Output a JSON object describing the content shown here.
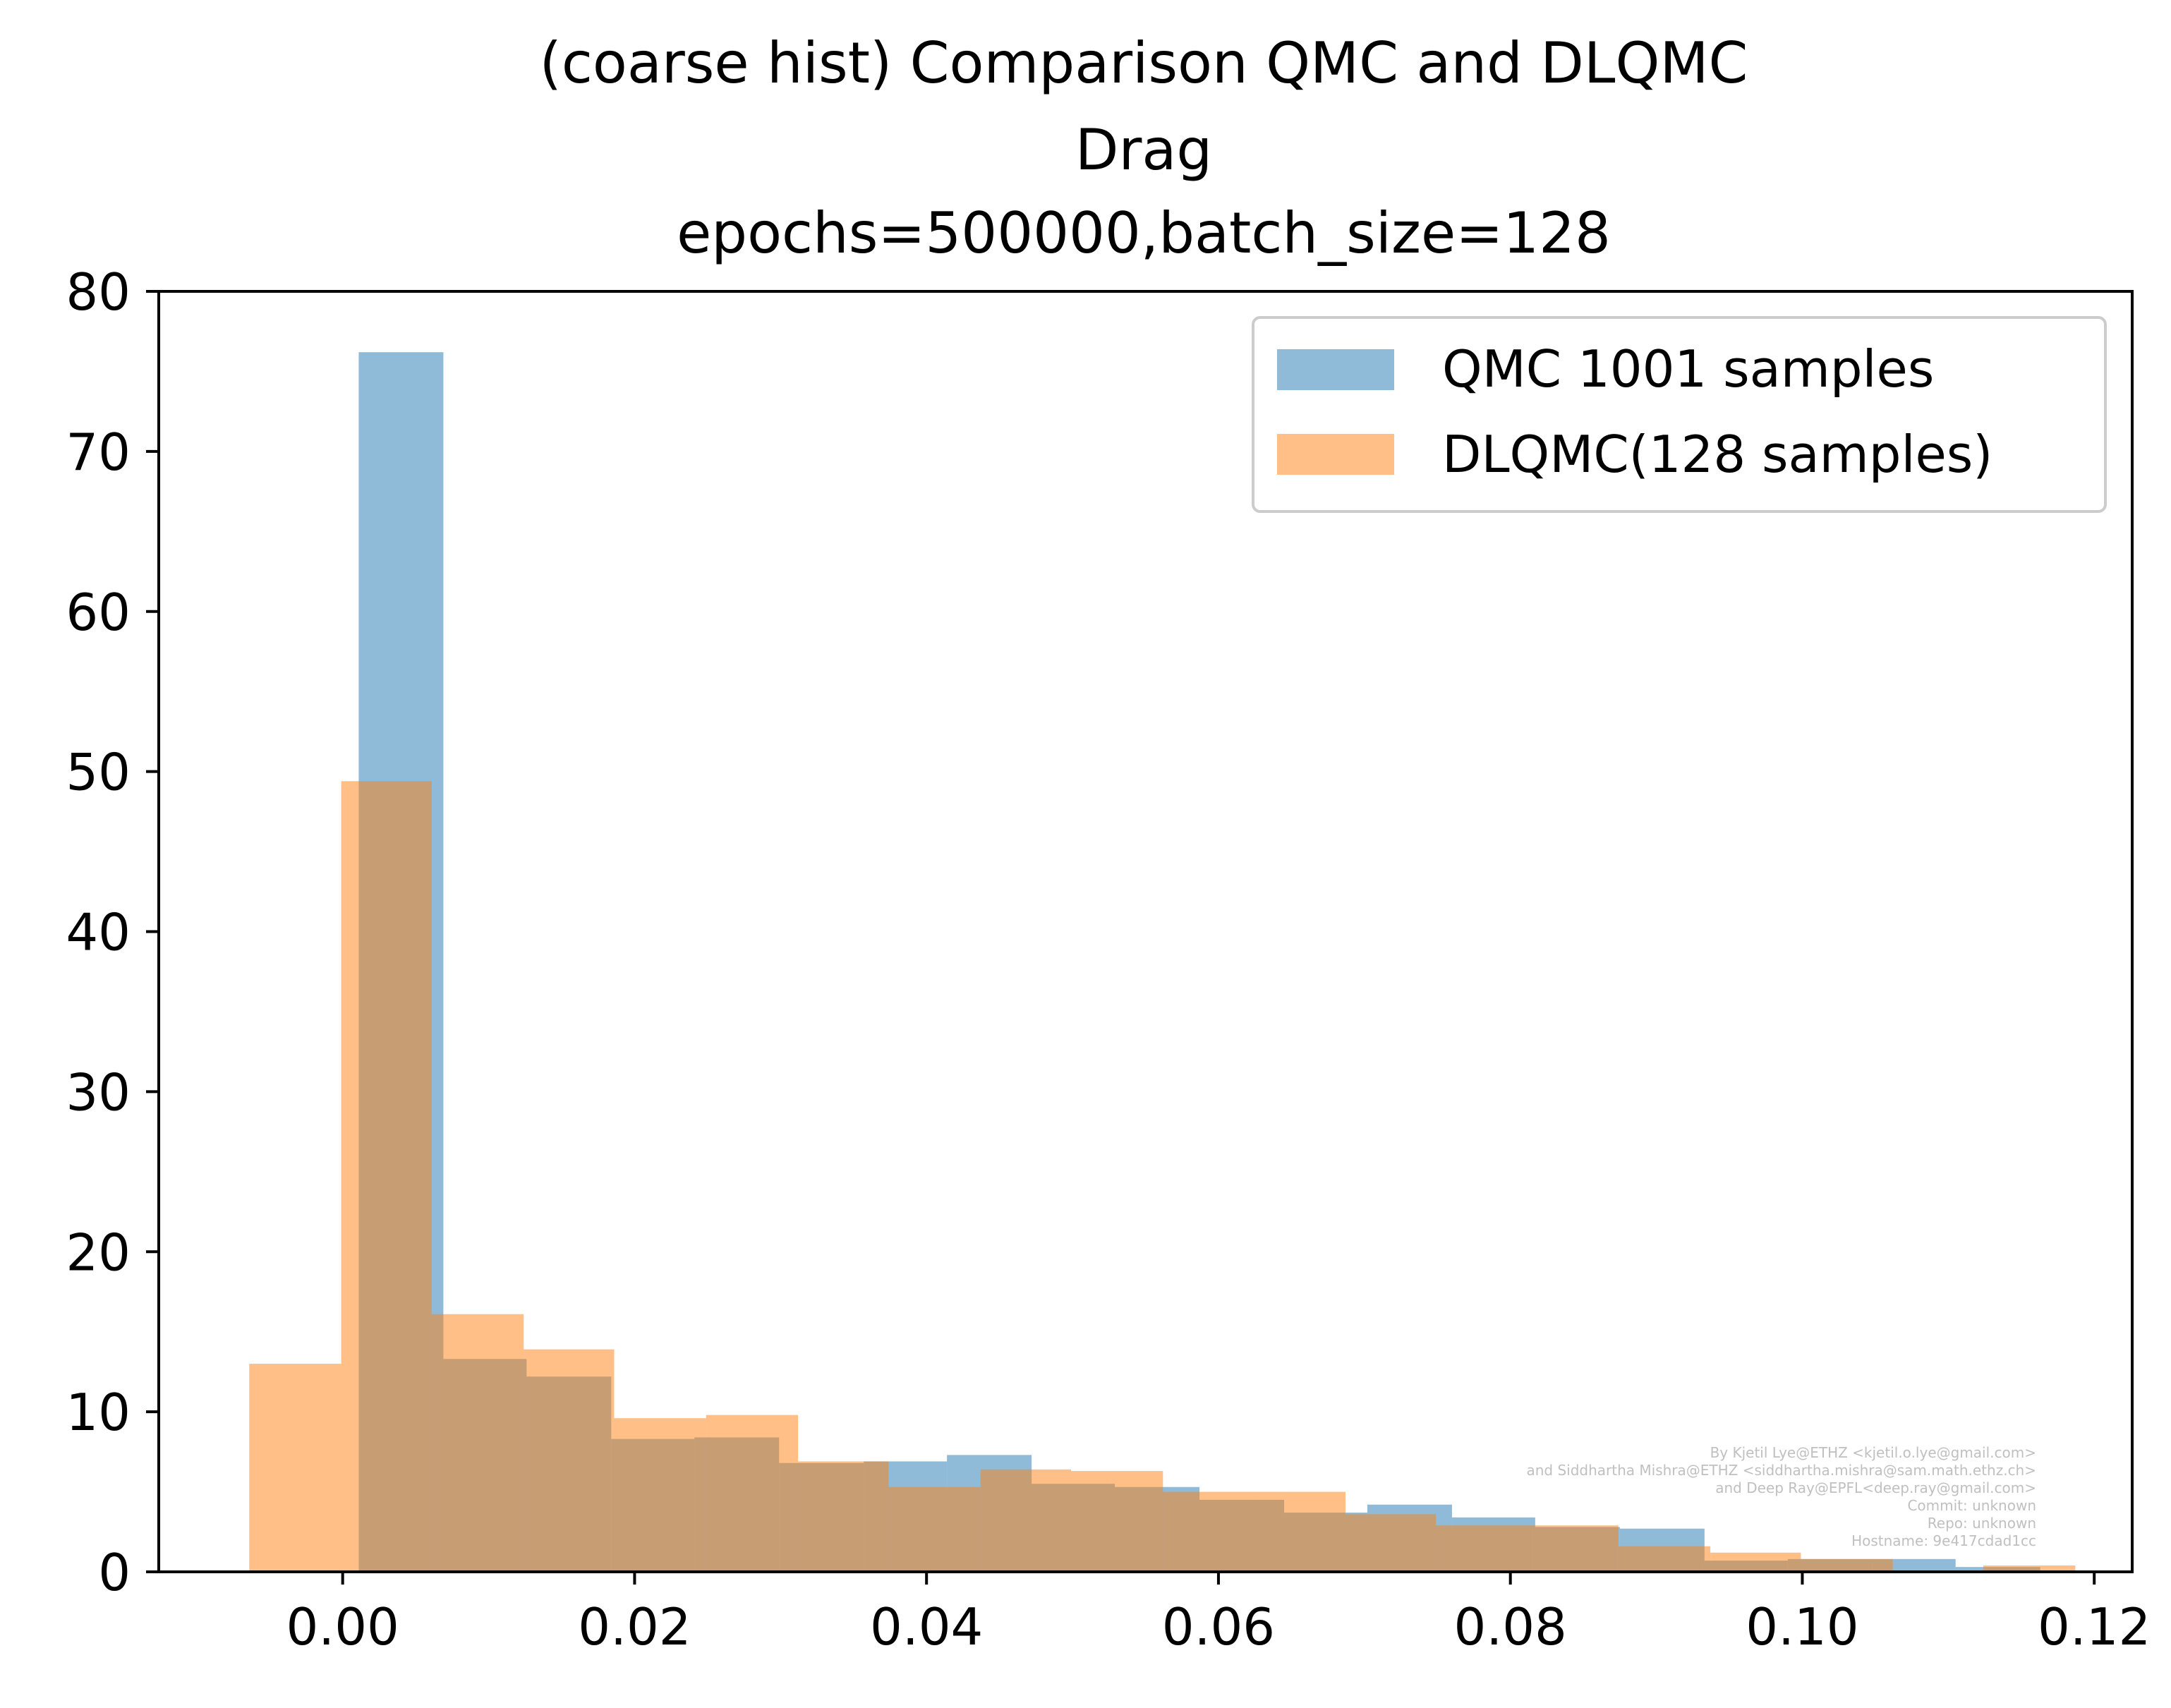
{
  "chart_data": {
    "type": "bar",
    "title_lines": [
      "(coarse hist) Comparison QMC and DLQMC",
      "Drag",
      "epochs=500000,batch_size=128"
    ],
    "xlabel": "",
    "ylabel": "",
    "xlim": [
      -0.0126,
      0.1226
    ],
    "ylim": [
      0,
      80
    ],
    "x_ticks": [
      0.0,
      0.02,
      0.04,
      0.06,
      0.08,
      0.1,
      0.12
    ],
    "x_tick_labels": [
      "0.00",
      "0.02",
      "0.04",
      "0.06",
      "0.08",
      "0.10",
      "0.12"
    ],
    "y_ticks": [
      0,
      10,
      20,
      30,
      40,
      50,
      60,
      70,
      80
    ],
    "y_tick_labels": [
      "0",
      "10",
      "20",
      "30",
      "40",
      "50",
      "60",
      "70",
      "80"
    ],
    "grid": false,
    "legend_position": "top-right",
    "series": [
      {
        "name": "QMC 1001 samples",
        "color": "#1f77b4",
        "alpha": 0.5,
        "bins": [
          {
            "x0": 0.0011,
            "x1": 0.0069,
            "value": 76.2
          },
          {
            "x0": 0.0069,
            "x1": 0.0126,
            "value": 13.3
          },
          {
            "x0": 0.0126,
            "x1": 0.0184,
            "value": 12.2
          },
          {
            "x0": 0.0184,
            "x1": 0.0241,
            "value": 8.3
          },
          {
            "x0": 0.0241,
            "x1": 0.0299,
            "value": 8.4
          },
          {
            "x0": 0.0299,
            "x1": 0.0357,
            "value": 6.8
          },
          {
            "x0": 0.0357,
            "x1": 0.0414,
            "value": 6.9
          },
          {
            "x0": 0.0414,
            "x1": 0.0472,
            "value": 7.3
          },
          {
            "x0": 0.0472,
            "x1": 0.0529,
            "value": 5.5
          },
          {
            "x0": 0.0529,
            "x1": 0.0587,
            "value": 5.3
          },
          {
            "x0": 0.0587,
            "x1": 0.0645,
            "value": 4.5
          },
          {
            "x0": 0.0645,
            "x1": 0.0702,
            "value": 3.7
          },
          {
            "x0": 0.0702,
            "x1": 0.076,
            "value": 4.2
          },
          {
            "x0": 0.076,
            "x1": 0.0817,
            "value": 3.4
          },
          {
            "x0": 0.0817,
            "x1": 0.0875,
            "value": 2.8
          },
          {
            "x0": 0.0875,
            "x1": 0.0933,
            "value": 2.7
          },
          {
            "x0": 0.0933,
            "x1": 0.099,
            "value": 0.7
          },
          {
            "x0": 0.099,
            "x1": 0.1048,
            "value": 0.8
          },
          {
            "x0": 0.1048,
            "x1": 0.1105,
            "value": 0.8
          },
          {
            "x0": 0.1105,
            "x1": 0.1163,
            "value": 0.3
          }
        ]
      },
      {
        "name": "DLQMC(128 samples)",
        "color": "#ff7f0e",
        "alpha": 0.5,
        "bins": [
          {
            "x0": -0.0064,
            "x1": -0.0001,
            "value": 13.0
          },
          {
            "x0": -0.0001,
            "x1": 0.0061,
            "value": 49.4
          },
          {
            "x0": 0.0061,
            "x1": 0.0124,
            "value": 16.1
          },
          {
            "x0": 0.0124,
            "x1": 0.0186,
            "value": 13.9
          },
          {
            "x0": 0.0186,
            "x1": 0.0249,
            "value": 9.6
          },
          {
            "x0": 0.0249,
            "x1": 0.0312,
            "value": 9.8
          },
          {
            "x0": 0.0312,
            "x1": 0.0374,
            "value": 6.9
          },
          {
            "x0": 0.0374,
            "x1": 0.0437,
            "value": 5.3
          },
          {
            "x0": 0.0437,
            "x1": 0.0499,
            "value": 6.4
          },
          {
            "x0": 0.0499,
            "x1": 0.0562,
            "value": 6.3
          },
          {
            "x0": 0.0562,
            "x1": 0.0624,
            "value": 5.0
          },
          {
            "x0": 0.0624,
            "x1": 0.0687,
            "value": 5.0
          },
          {
            "x0": 0.0687,
            "x1": 0.0749,
            "value": 3.6
          },
          {
            "x0": 0.0749,
            "x1": 0.0812,
            "value": 2.9
          },
          {
            "x0": 0.0812,
            "x1": 0.0874,
            "value": 2.9
          },
          {
            "x0": 0.0874,
            "x1": 0.0937,
            "value": 1.6
          },
          {
            "x0": 0.0937,
            "x1": 0.0999,
            "value": 1.2
          },
          {
            "x0": 0.0999,
            "x1": 0.1062,
            "value": 0.8
          },
          {
            "x0": 0.1062,
            "x1": 0.1124,
            "value": 0.0
          },
          {
            "x0": 0.1124,
            "x1": 0.1187,
            "value": 0.4
          }
        ]
      }
    ],
    "annotation_lines": [
      "By Kjetil Lye@ETHZ <kjetil.o.lye@gmail.com>",
      "and Siddhartha Mishra@ETHZ <siddhartha.mishra@sam.math.ethz.ch>",
      "and Deep Ray@EPFL<deep.ray@gmail.com>",
      "Commit: unknown",
      "Repo: unknown",
      "Hostname: 9e417cdad1cc"
    ]
  }
}
